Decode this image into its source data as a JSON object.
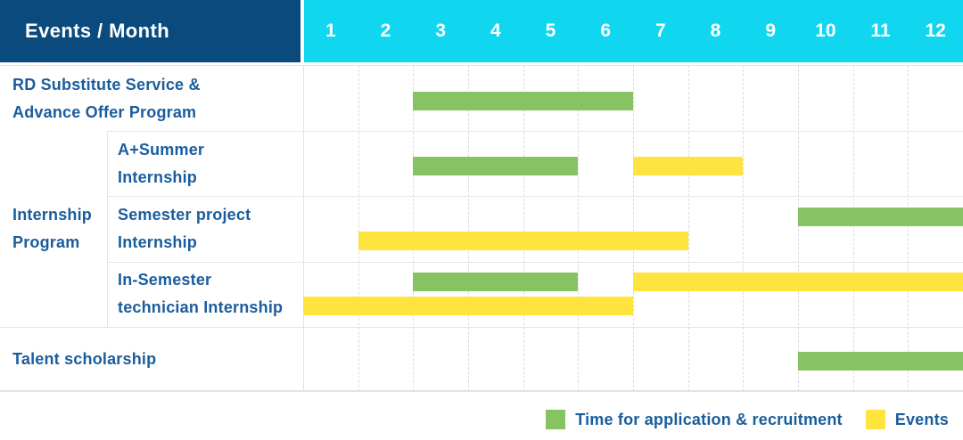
{
  "header": {
    "title": "Events / Month",
    "months": [
      "1",
      "2",
      "3",
      "4",
      "5",
      "6",
      "7",
      "8",
      "9",
      "10",
      "11",
      "12"
    ]
  },
  "colors": {
    "header_dark_blue": "#0b4a7d",
    "header_cyan": "#10d7ef",
    "green": "#86c463",
    "yellow": "#ffe33e",
    "label_text_blue": "#1a5d9c",
    "grid_line": "#e6e6e6",
    "section_line": "#d8e8f2"
  },
  "legend": [
    {
      "color_key": "green",
      "label": "Time for application & recruitment"
    },
    {
      "color_key": "yellow",
      "label": "Events"
    }
  ],
  "chart_data": {
    "type": "gantt",
    "title": "Events / Month",
    "x_axis": {
      "label": "Month",
      "ticks": [
        1,
        2,
        3,
        4,
        5,
        6,
        7,
        8,
        9,
        10,
        11,
        12
      ],
      "range": [
        1,
        12
      ]
    },
    "legend_entries": [
      "Time for application & recruitment",
      "Events"
    ],
    "groups": [
      {
        "label": "Internship Program",
        "label_lines": [
          "Internship",
          "Program"
        ],
        "row_span": [
          1,
          3
        ]
      }
    ],
    "rows": [
      {
        "group": null,
        "label": "RD Substitute Service & Advance Offer Program",
        "label_lines": [
          "RD Substitute Service &",
          "Advance Offer Program"
        ],
        "bars": [
          {
            "series": "Time for application & recruitment",
            "color_key": "green",
            "start_month": 3,
            "end_month": 6,
            "lane": "center"
          }
        ]
      },
      {
        "group": "Internship Program",
        "label": "A+Summer Internship",
        "label_lines": [
          "A+Summer",
          "Internship"
        ],
        "bars": [
          {
            "series": "Time for application & recruitment",
            "color_key": "green",
            "start_month": 3,
            "end_month": 5,
            "lane": "center"
          },
          {
            "series": "Events",
            "color_key": "yellow",
            "start_month": 7,
            "end_month": 8,
            "lane": "center"
          }
        ]
      },
      {
        "group": "Internship Program",
        "label": "Semester project Internship",
        "label_lines": [
          "Semester project",
          "Internship"
        ],
        "bars": [
          {
            "series": "Time for application & recruitment",
            "color_key": "green",
            "start_month": 10,
            "end_month": 12,
            "lane": "top"
          },
          {
            "series": "Events",
            "color_key": "yellow",
            "start_month": 2,
            "end_month": 7,
            "lane": "bottom"
          }
        ]
      },
      {
        "group": "Internship Program",
        "label": "In-Semester technician Internship",
        "label_lines": [
          "In-Semester",
          "technician Internship"
        ],
        "bars": [
          {
            "series": "Time for application & recruitment",
            "color_key": "green",
            "start_month": 3,
            "end_month": 5,
            "lane": "top"
          },
          {
            "series": "Events",
            "color_key": "yellow",
            "start_month": 7,
            "end_month": 12,
            "lane": "top"
          },
          {
            "series": "Events",
            "color_key": "yellow",
            "start_month": 1,
            "end_month": 6,
            "lane": "bottom"
          }
        ]
      },
      {
        "group": null,
        "label": "Talent scholarship",
        "label_lines": [
          "Talent scholarship"
        ],
        "bars": [
          {
            "series": "Time for application & recruitment",
            "color_key": "green",
            "start_month": 10,
            "end_month": 12,
            "lane": "center"
          }
        ]
      }
    ]
  }
}
